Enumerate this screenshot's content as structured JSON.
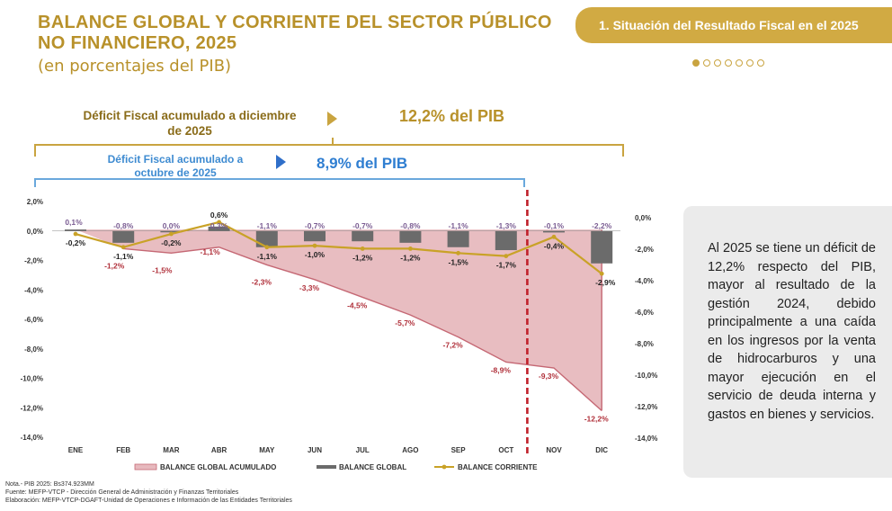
{
  "header": {
    "title_line1": "BALANCE GLOBAL Y CORRIENTE DEL SECTOR PÚBLICO",
    "title_line2": "NO FINANCIERO, 2025",
    "subtitle": "(en porcentajes del PIB)",
    "section_tab": "1. Situación del Resultado Fiscal en el 2025",
    "pager": {
      "total": 7,
      "active": 1
    }
  },
  "highlights": {
    "deficit_dic_label": "Déficit Fiscal acumulado a diciembre de 2025",
    "deficit_dic_value": "12,2% del PIB",
    "deficit_oct_label": "Déficit Fiscal acumulado a octubre de 2025",
    "deficit_oct_value": "8,9% del PIB"
  },
  "chart_data": {
    "type": "area",
    "categories": [
      "ENE",
      "FEB",
      "MAR",
      "ABR",
      "MAY",
      "JUN",
      "JUL",
      "AGO",
      "SEP",
      "OCT",
      "NOV",
      "DIC"
    ],
    "left_axis": {
      "ticks": [
        "2,0%",
        "0,0%",
        "-2,0%",
        "-4,0%",
        "-6,0%",
        "-8,0%",
        "-10,0%",
        "-12,0%",
        "-14,0%"
      ],
      "ylim": [
        -14,
        2
      ]
    },
    "right_axis": {
      "ticks": [
        "0,0%",
        "-2,0%",
        "-4,0%",
        "-6,0%",
        "-8,0%",
        "-10,0%",
        "-12,0%",
        "-14,0%"
      ],
      "ylim": [
        -14,
        2
      ]
    },
    "series": [
      {
        "name": "BALANCE GLOBAL ACUMULADO",
        "kind": "area",
        "color": "#e7b9be",
        "stroke": "#c56874",
        "values": [
          0.1,
          -1.2,
          -1.5,
          -1.1,
          -2.3,
          -3.3,
          -4.5,
          -5.7,
          -7.2,
          -8.9,
          -9.3,
          -12.2
        ],
        "labels": [
          "",
          "-1,2%",
          "-1,5%",
          "-1,1%",
          "-2,3%",
          "-3,3%",
          "-4,5%",
          "-5,7%",
          "-7,2%",
          "-8,9%",
          "-9,3%",
          "-12,2%"
        ]
      },
      {
        "name": "BALANCE GLOBAL",
        "kind": "bar",
        "color": "#6b6b6b",
        "values": [
          0.1,
          -0.8,
          0.0,
          0.3,
          -1.1,
          -0.7,
          -0.7,
          -0.8,
          -1.1,
          -1.3,
          -0.1,
          -2.2
        ],
        "labels": [
          "0,1%",
          "-0,8%",
          "0,0%",
          "0,3%",
          "-1,1%",
          "-0,7%",
          "-0,7%",
          "-0,8%",
          "-1,1%",
          "-1,3%",
          "-0,1%",
          "-2,2%"
        ]
      },
      {
        "name": "BALANCE CORRIENTE",
        "kind": "line",
        "color": "#c9a227",
        "values": [
          -0.2,
          -1.1,
          -0.2,
          0.6,
          -1.1,
          -1.0,
          -1.2,
          -1.2,
          -1.5,
          -1.7,
          -0.4,
          -2.9
        ],
        "labels": [
          "-0,2%",
          "-1,1%",
          "-0,2%",
          "0,6%",
          "-1,1%",
          "-1,0%",
          "-1,2%",
          "-1,2%",
          "-1,5%",
          "-1,7%",
          "-0,4%",
          "-2,9%"
        ]
      }
    ],
    "marker_after": "OCT",
    "legend_position": "bottom",
    "grid": false
  },
  "side_note": "Al 2025 se tiene un déficit de 12,2% respecto del PIB, mayor al resultado de la gestión 2024, debido principalmente a una caída en los ingresos por la venta de hidrocarburos y una mayor ejecución en el servicio de deuda interna y gastos en bienes y servicios.",
  "footer": {
    "nota": "Nota.- PIB 2025: Bs374.923MM",
    "fuente": "Fuente: MEFP-VTCP - Dirección General de Administración y Finanzas Territoriales",
    "elaboracion": "Elaboración: MEFP-VTCP-DGAFT-Unidad de Operaciones e Información de las Entidades Territoriales"
  },
  "colors": {
    "gold": "#c9a440",
    "blue": "#2f7ed1",
    "area_fill": "#e7b9be",
    "red_marker": "#c0202a"
  }
}
